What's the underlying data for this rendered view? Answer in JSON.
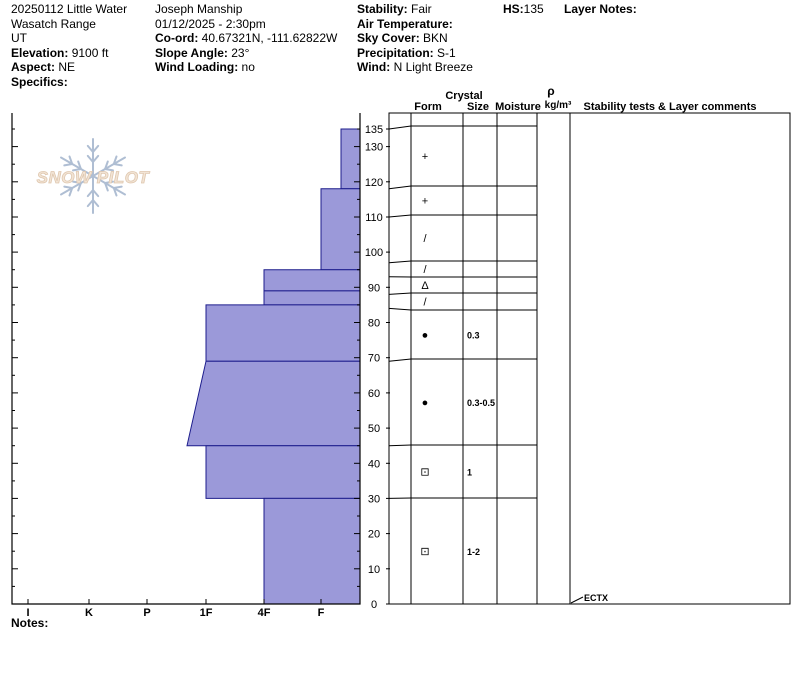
{
  "header": {
    "col1": {
      "title": "20250112 Little Water",
      "range": "Wasatch Range",
      "state": "UT",
      "elevation_label": "Elevation:",
      "elevation": "9100 ft",
      "aspect_label": "Aspect:",
      "aspect": "NE",
      "specifics_label": "Specifics:",
      "specifics": ""
    },
    "col2": {
      "observer": "Joseph Manship",
      "datetime": "01/12/2025 - 2:30pm",
      "coord_label": "Co-ord:",
      "coord": "40.67321N, -111.62822W",
      "slope_label": "Slope Angle:",
      "slope": "23°",
      "wind_loading_label": "Wind Loading:",
      "wind_loading": "no"
    },
    "col3": {
      "stability_label": "Stability:",
      "stability": "Fair",
      "air_temp_label": "Air Temperature:",
      "air_temp": "",
      "sky_label": "Sky Cover:",
      "sky": "BKN",
      "precip_label": "Precipitation:",
      "precip": "S-1",
      "wind_label": "Wind:",
      "wind": "N Light Breeze"
    },
    "hs_label": "HS:",
    "hs": "135",
    "layer_notes_label": "Layer Notes:"
  },
  "logo": {
    "text": "SNOW PILOT"
  },
  "columns": {
    "crystal": "Crystal",
    "form": "Form",
    "size": "Size",
    "moisture": "Moisture",
    "rho": "ρ",
    "density_unit": "kg/m³",
    "stability": "Stability tests & Layer comments"
  },
  "notes_label": "Notes:",
  "notes": "",
  "chart_data": {
    "type": "snow-profile",
    "hardness_scale": [
      "I",
      "K",
      "P",
      "1F",
      "4F",
      "F"
    ],
    "hardness_axis_order": "I at left, hardness decreasing to F at right",
    "height_axis": {
      "unit": "cm",
      "range": [
        0,
        135
      ],
      "ticks": [
        0,
        10,
        20,
        30,
        40,
        50,
        60,
        70,
        80,
        90,
        100,
        110,
        120,
        130,
        135
      ]
    },
    "hardness_layers": [
      {
        "top": 135,
        "bottom": 118,
        "hardness_top": "F+",
        "hardness_bottom": "F+"
      },
      {
        "top": 118,
        "bottom": 95,
        "hardness_top": "F",
        "hardness_bottom": "F"
      },
      {
        "top": 95,
        "bottom": 89,
        "hardness_top": "4F",
        "hardness_bottom": "4F"
      },
      {
        "top": 89,
        "bottom": 85,
        "hardness_top": "4F",
        "hardness_bottom": "4F"
      },
      {
        "top": 85,
        "bottom": 69,
        "hardness_top": "1F",
        "hardness_bottom": "1F"
      },
      {
        "top": 69,
        "bottom": 45,
        "hardness_top": "1F",
        "hardness_bottom": "1F-"
      },
      {
        "top": 45,
        "bottom": 30,
        "hardness_top": "1F",
        "hardness_bottom": "1F"
      },
      {
        "top": 30,
        "bottom": 0,
        "hardness_top": "4F",
        "hardness_bottom": "4F"
      }
    ],
    "crystal_layers": [
      {
        "top": 135,
        "bottom": 118,
        "form_icon": "precipitation-particles",
        "form": "+",
        "size": ""
      },
      {
        "top": 118,
        "bottom": 110,
        "form_icon": "precipitation-particles",
        "form": "+",
        "size": ""
      },
      {
        "top": 110,
        "bottom": 97,
        "form_icon": "decomposing-fragments",
        "form": "/",
        "size": ""
      },
      {
        "top": 97,
        "bottom": 93,
        "form_icon": "decomposing-fragments",
        "form": "/",
        "size": ""
      },
      {
        "top": 93,
        "bottom": 88,
        "form_icon": "faceted-crystals",
        "form": "Δ",
        "size": ""
      },
      {
        "top": 88,
        "bottom": 84,
        "form_icon": "decomposing-fragments",
        "form": "/",
        "size": ""
      },
      {
        "top": 84,
        "bottom": 69,
        "form_icon": "rounded-grains",
        "form": "●",
        "size": "0.3"
      },
      {
        "top": 69,
        "bottom": 45,
        "form_icon": "rounded-grains",
        "form": "●",
        "size": "0.3-0.5"
      },
      {
        "top": 45,
        "bottom": 30,
        "form_icon": "mixed-forms",
        "form": "⊡",
        "size": "1"
      },
      {
        "top": 30,
        "bottom": 0,
        "form_icon": "mixed-forms",
        "form": "⊡",
        "size": "1-2"
      }
    ],
    "stability_tests": [
      {
        "height": 0,
        "label": "ECTX"
      }
    ]
  }
}
